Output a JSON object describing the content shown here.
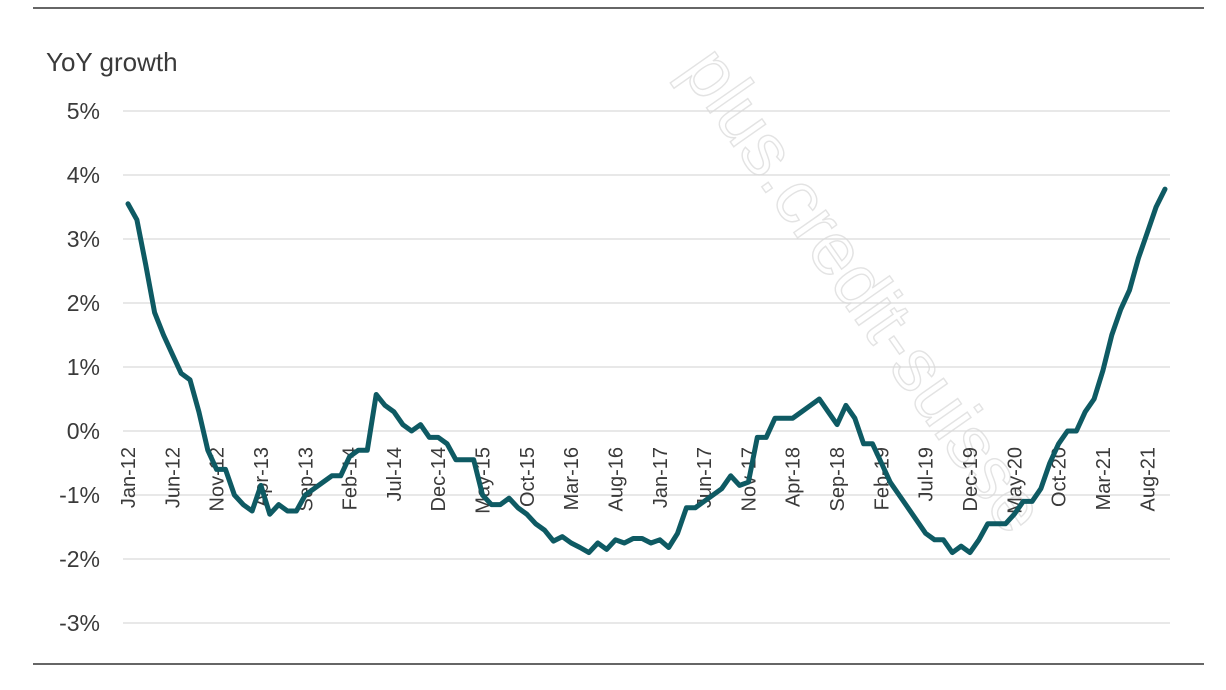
{
  "watermark": "plus.credit-suisse",
  "chart_data": {
    "type": "line",
    "ylabel": "YoY growth",
    "xlabel": "",
    "ylim": [
      -3,
      5
    ],
    "yticks": [
      "5%",
      "4%",
      "3%",
      "2%",
      "1%",
      "0%",
      "-1%",
      "-2%",
      "-3%"
    ],
    "ytick_values": [
      5,
      4,
      3,
      2,
      1,
      0,
      -1,
      -2,
      -3
    ],
    "xtick_labels": [
      "Jan-12",
      "Jun-12",
      "Nov-12",
      "Apr-13",
      "Sep-13",
      "Feb-14",
      "Jul-14",
      "Dec-14",
      "May-15",
      "Oct-15",
      "Mar-16",
      "Aug-16",
      "Jan-17",
      "Jun-17",
      "Nov-17",
      "Apr-18",
      "Sep-18",
      "Feb-19",
      "Jul-19",
      "Dec-19",
      "May-20",
      "Oct-20",
      "Mar-21",
      "Aug-21"
    ],
    "grid": true,
    "line_color": "#0e5a63",
    "series": [
      {
        "values": [
          3.55,
          3.3,
          2.6,
          1.85,
          1.5,
          1.2,
          0.9,
          0.8,
          0.3,
          -0.3,
          -0.6,
          -0.6,
          -1.0,
          -1.15,
          -1.25,
          -0.85,
          -1.3,
          -1.15,
          -1.25,
          -1.25,
          -1.0,
          -0.9,
          -0.8,
          -0.7,
          -0.7,
          -0.4,
          -0.3,
          -0.3,
          0.57,
          0.4,
          0.3,
          0.1,
          0.0,
          0.1,
          -0.1,
          -0.1,
          -0.2,
          -0.45,
          -0.45,
          -0.45,
          -1.0,
          -1.15,
          -1.15,
          -1.05,
          -1.2,
          -1.3,
          -1.45,
          -1.55,
          -1.72,
          -1.65,
          -1.75,
          -1.82,
          -1.9,
          -1.75,
          -1.85,
          -1.7,
          -1.75,
          -1.68,
          -1.68,
          -1.75,
          -1.7,
          -1.82,
          -1.6,
          -1.2,
          -1.2,
          -1.1,
          -1.0,
          -0.9,
          -0.7,
          -0.85,
          -0.8,
          -0.1,
          -0.1,
          0.2,
          0.2,
          0.2,
          0.3,
          0.4,
          0.5,
          0.3,
          0.1,
          0.4,
          0.2,
          -0.2,
          -0.2,
          -0.5,
          -0.8,
          -1.0,
          -1.2,
          -1.4,
          -1.6,
          -1.7,
          -1.7,
          -1.9,
          -1.8,
          -1.9,
          -1.7,
          -1.45,
          -1.45,
          -1.45,
          -1.3,
          -1.1,
          -1.1,
          -0.9,
          -0.5,
          -0.2,
          0.0,
          0.0,
          0.3,
          0.5,
          0.95,
          1.5,
          1.9,
          2.2,
          2.7,
          3.1,
          3.5,
          3.78
        ]
      }
    ]
  }
}
